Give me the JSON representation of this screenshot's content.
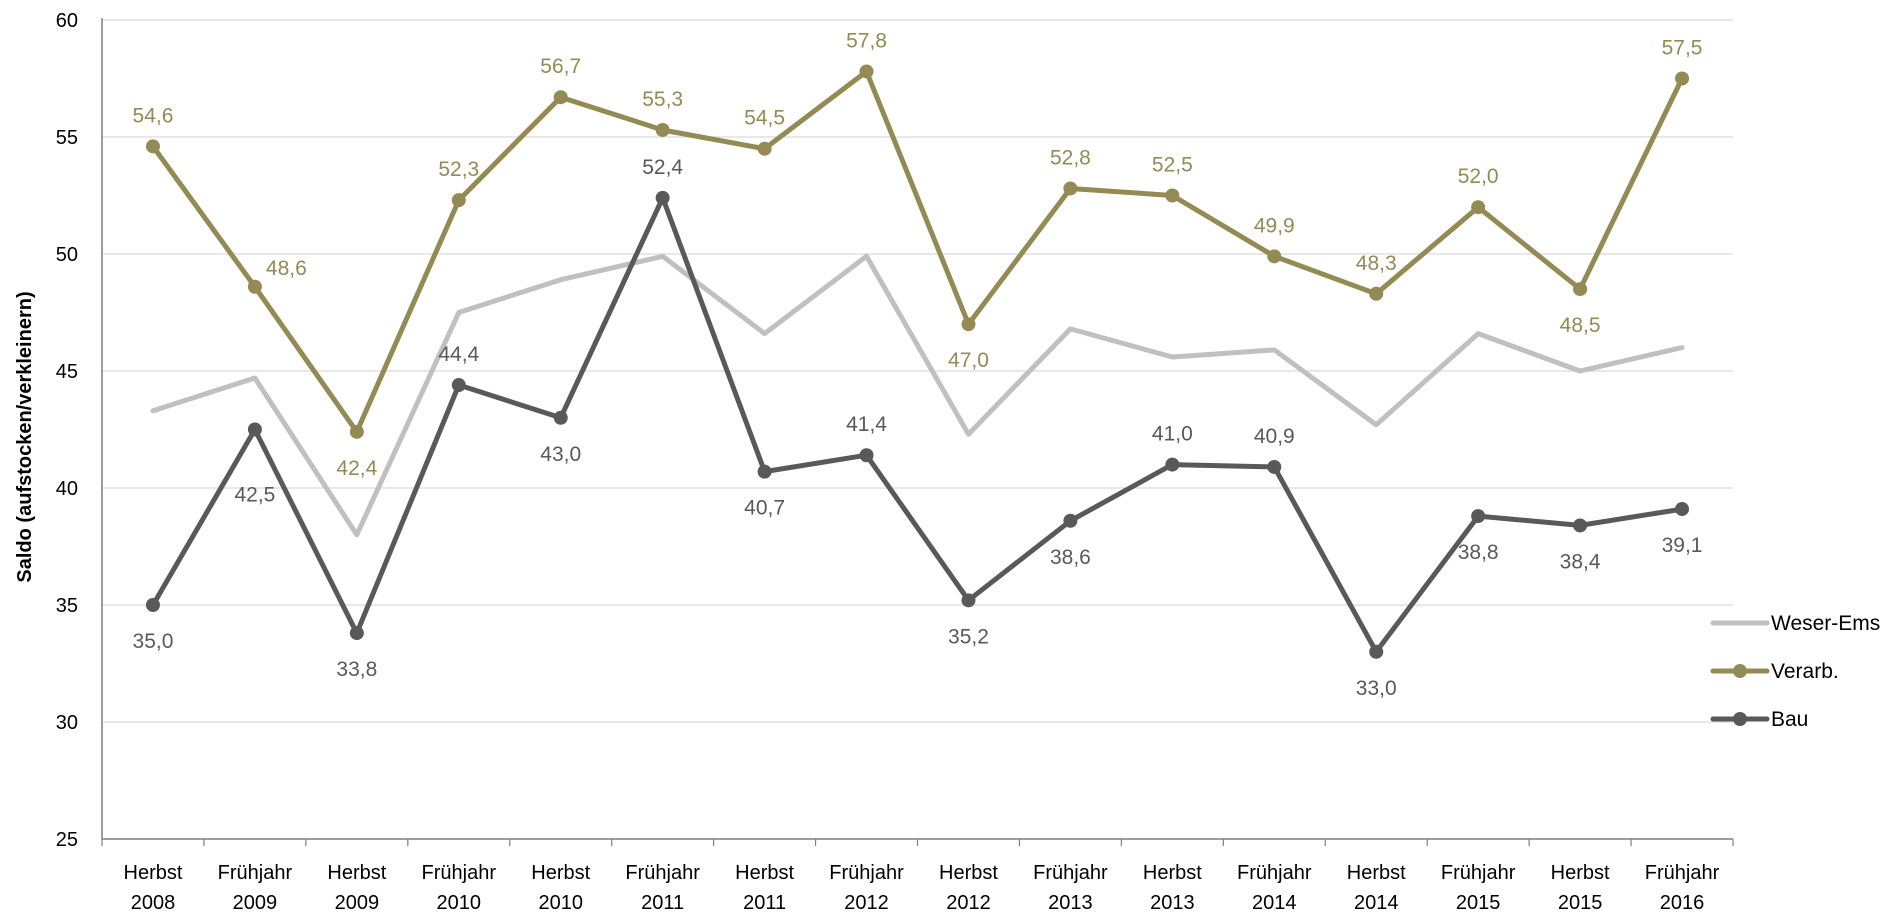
{
  "chart_data": {
    "type": "line",
    "title": "",
    "xlabel": "",
    "ylabel": "Saldo (aufstocken/verkleinern)",
    "ylim": [
      25,
      60
    ],
    "yticks": [
      "25",
      "30",
      "35",
      "40",
      "45",
      "50",
      "55",
      "60"
    ],
    "grid": true,
    "legend_position": "right",
    "categories": [
      [
        "Herbst",
        "2008"
      ],
      [
        "Frühjahr",
        "2009"
      ],
      [
        "Herbst",
        "2009"
      ],
      [
        "Frühjahr",
        "2010"
      ],
      [
        "Herbst",
        "2010"
      ],
      [
        "Frühjahr",
        "2011"
      ],
      [
        "Herbst",
        "2011"
      ],
      [
        "Frühjahr",
        "2012"
      ],
      [
        "Herbst",
        "2012"
      ],
      [
        "Frühjahr",
        "2013"
      ],
      [
        "Herbst",
        "2013"
      ],
      [
        "Frühjahr",
        "2014"
      ],
      [
        "Herbst",
        "2014"
      ],
      [
        "Frühjahr",
        "2015"
      ],
      [
        "Herbst",
        "2015"
      ],
      [
        "Frühjahr",
        "2016"
      ]
    ],
    "series": [
      {
        "name": "Weser-Ems",
        "color": "#c0c0c0",
        "markers": false,
        "show_labels": false,
        "values": [
          43.3,
          44.7,
          38.0,
          47.5,
          48.9,
          49.9,
          46.6,
          49.9,
          42.3,
          46.8,
          45.6,
          45.9,
          42.7,
          46.6,
          45.0,
          46.0
        ]
      },
      {
        "name": "Verarb.",
        "color": "#948a54",
        "markers": true,
        "show_labels": true,
        "values": [
          54.6,
          48.6,
          42.4,
          52.3,
          56.7,
          55.3,
          54.5,
          57.8,
          47.0,
          52.8,
          52.5,
          49.9,
          48.3,
          52.0,
          48.5,
          57.5
        ],
        "labels": [
          "54,6",
          "48,6",
          "42,4",
          "52,3",
          "56,7",
          "55,3",
          "54,5",
          "57,8",
          "47,0",
          "52,8",
          "52,5",
          "49,9",
          "48,3",
          "52,0",
          "48,5",
          "57,5"
        ],
        "label_pos": [
          "above",
          "right",
          "below",
          "above",
          "above",
          "above",
          "above",
          "above",
          "below",
          "above",
          "above",
          "above",
          "above",
          "above",
          "below",
          "above"
        ]
      },
      {
        "name": "Bau",
        "color": "#595959",
        "markers": true,
        "show_labels": true,
        "values": [
          35.0,
          42.5,
          33.8,
          44.4,
          43.0,
          52.4,
          40.7,
          41.4,
          35.2,
          38.6,
          41.0,
          40.9,
          33.0,
          38.8,
          38.4,
          39.1
        ],
        "labels": [
          "35,0",
          "42,5",
          "33,8",
          "44,4",
          "43,0",
          "52,4",
          "40,7",
          "41,4",
          "35,2",
          "38,6",
          "41,0",
          "40,9",
          "33,0",
          "38,8",
          "38,4",
          "39,1"
        ],
        "label_pos": [
          "below",
          "below-left",
          "below",
          "above",
          "below",
          "above",
          "below",
          "above",
          "below",
          "below",
          "above",
          "above",
          "below",
          "below",
          "below",
          "below"
        ]
      }
    ]
  }
}
